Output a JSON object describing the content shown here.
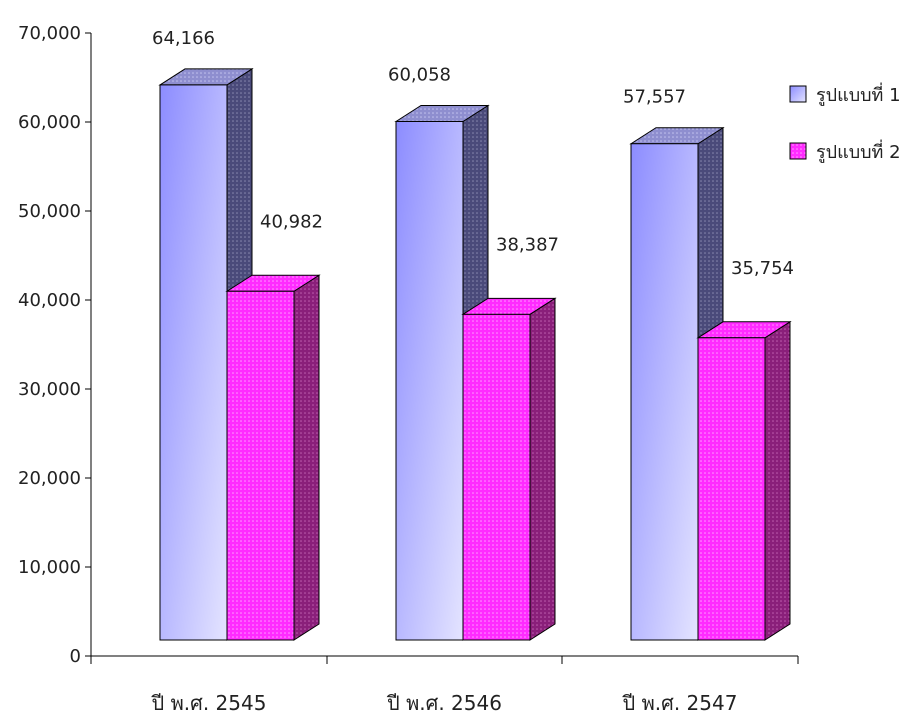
{
  "chart_data": {
    "type": "bar",
    "categories": [
      "ปี พ.ศ. 2545",
      "ปี พ.ศ. 2546",
      "ปี พ.ศ. 2547"
    ],
    "series": [
      {
        "name": "รูปแบบที่ 1",
        "values": [
          64166,
          60058,
          57557
        ],
        "labels": [
          "64,166",
          "60,058",
          "57,557"
        ],
        "color": "#9999ff"
      },
      {
        "name": "รูปแบบที่ 2",
        "values": [
          40982,
          38387,
          35754
        ],
        "labels": [
          "40,982",
          "38,387",
          "35,754"
        ],
        "color": "#ff33ff"
      }
    ],
    "y_ticks": [
      "0",
      "10,000",
      "20,000",
      "30,000",
      "40,000",
      "50,000",
      "60,000",
      "70,000"
    ],
    "ylim": [
      0,
      70000
    ],
    "legend_position": "right",
    "three_d": true,
    "grid": false
  }
}
